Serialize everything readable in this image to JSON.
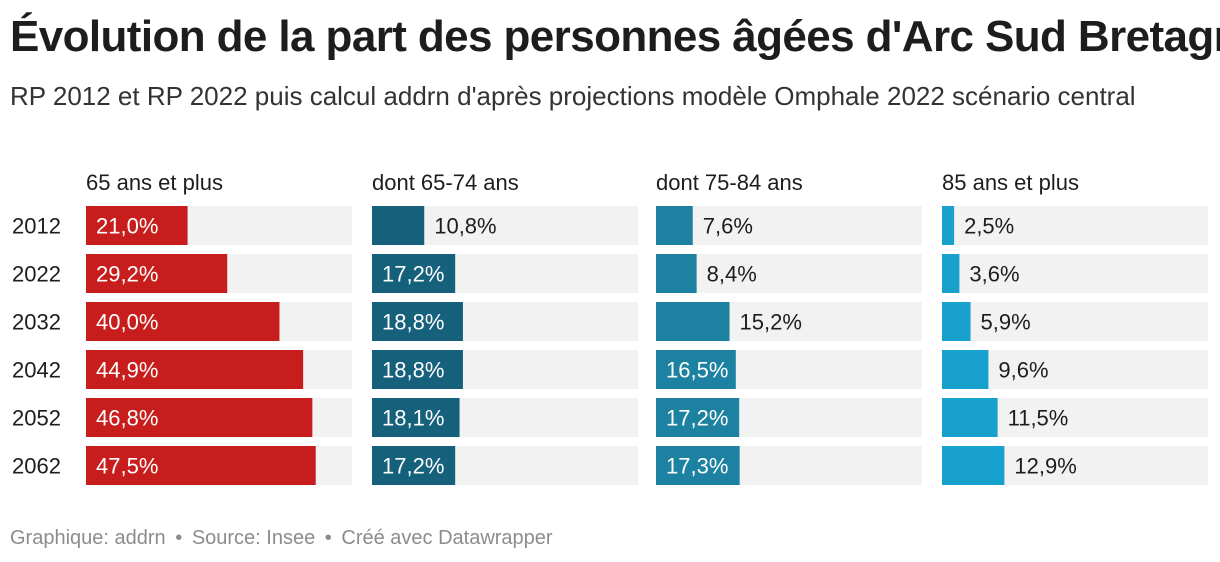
{
  "title": "Évolution de la part des personnes âgées d'Arc Sud Bretagne",
  "subtitle": "RP 2012 et RP 2022 puis calcul addrn d'après projections modèle Omphale 2022 scénario central",
  "footer": {
    "graphic": "Graphique: addrn",
    "source": "Source: Insee",
    "made_with": "Créé avec Datawrapper",
    "separator": "•"
  },
  "chart_data": {
    "type": "bar",
    "categories": [
      "2012",
      "2022",
      "2032",
      "2042",
      "2052",
      "2062"
    ],
    "xlim": [
      0,
      55
    ],
    "unit": "%",
    "series": [
      {
        "name": "65 ans et plus",
        "values": [
          21.0,
          29.2,
          40.0,
          44.9,
          46.8,
          47.5
        ],
        "labels": [
          "21,0%",
          "29,2%",
          "40,0%",
          "44,9%",
          "46,8%",
          "47,5%"
        ],
        "color": "#c71e1d"
      },
      {
        "name": "dont 65-74 ans",
        "values": [
          10.8,
          17.2,
          18.8,
          18.8,
          18.1,
          17.2
        ],
        "labels": [
          "10,8%",
          "17,2%",
          "18,8%",
          "18,8%",
          "18,1%",
          "17,2%"
        ],
        "color": "#15607a"
      },
      {
        "name": "dont 75-84 ans",
        "values": [
          7.6,
          8.4,
          15.2,
          16.5,
          17.2,
          17.3
        ],
        "labels": [
          "7,6%",
          "8,4%",
          "15,2%",
          "16,5%",
          "17,2%",
          "17,3%"
        ],
        "color": "#1d81a2"
      },
      {
        "name": "85 ans et plus",
        "values": [
          2.5,
          3.6,
          5.9,
          9.6,
          11.5,
          12.9
        ],
        "labels": [
          "2,5%",
          "3,6%",
          "5,9%",
          "9,6%",
          "11,5%",
          "12,9%"
        ],
        "color": "#18a1cd"
      }
    ]
  }
}
